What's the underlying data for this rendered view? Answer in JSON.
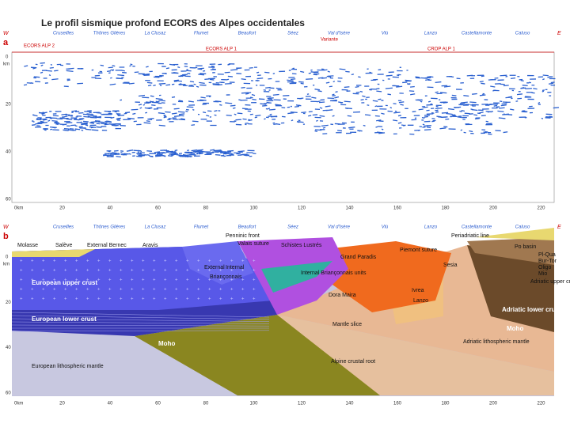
{
  "header": {
    "title": "Le profil sismique profond ECORS des Alpes occidentales"
  },
  "panel_a": {
    "label": "a",
    "west": "W",
    "east": "E",
    "places": [
      "Cruseilles",
      "Thônes Glières",
      "La Clusaz",
      "Flumet",
      "Beaufort",
      "Séez",
      "Val d'Isère",
      "Viù",
      "Lanzo",
      "Castellamonte",
      "Caluso"
    ],
    "profiles": [
      "ECORS ALP 2",
      "ECORS ALP 1",
      "Variante",
      "CROP ALP 1"
    ],
    "depth_unit": "km",
    "depth_ticks": [
      "0",
      "20",
      "40",
      "60"
    ],
    "distance_ticks": [
      "0km",
      "20",
      "40",
      "60",
      "80",
      "100",
      "120",
      "140",
      "160",
      "180",
      "200",
      "220"
    ]
  },
  "panel_b": {
    "label": "b",
    "west": "W",
    "east": "E",
    "places": [
      "Cruseilles",
      "Thônes Glières",
      "La Clusaz",
      "Flumet",
      "Beaufort",
      "Séez",
      "Val d'Isère",
      "Viù",
      "Lanzo",
      "Castellamonte",
      "Caluso"
    ],
    "depth_unit": "km",
    "depth_ticks": [
      "0",
      "20",
      "40",
      "60"
    ],
    "distance_ticks": [
      "0km",
      "20",
      "40",
      "60",
      "80",
      "100",
      "120",
      "140",
      "160",
      "180",
      "200",
      "220"
    ],
    "labels": [
      "Molasse",
      "Salève",
      "External Bernec",
      "Aravis",
      "Penninic front",
      "Valais suture",
      "Schistes Lustrés",
      "Piemont suture",
      "Periadriatic line",
      "Sesia",
      "Po basin",
      "Pl-Qua",
      "Bur-Tor",
      "Oligo",
      "Mio",
      "Adriatic upper crust",
      "European upper crust",
      "External",
      "Internal",
      "Briançonnais",
      "Internal Briançonnais units",
      "Grand Paradis",
      "Dora Maira",
      "Ivrea",
      "Lanzo",
      "Mantle slice",
      "European lower crust",
      "Moho",
      "Adriatic lower crust",
      "Moho",
      "Adriatic lithospheric mantle",
      "European lithospheric mantle",
      "Alpine crustal root"
    ]
  }
}
